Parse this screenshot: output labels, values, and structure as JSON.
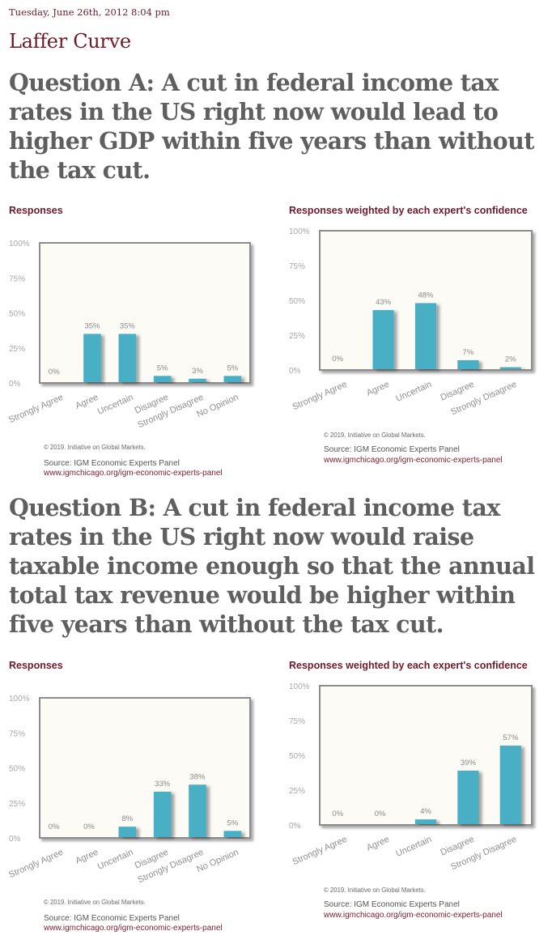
{
  "page": {
    "date": "Tuesday, June 26th, 2012 8:04 pm",
    "title": "Laffer Curve"
  },
  "questions": [
    {
      "heading": "Question A: A cut in federal income tax rates in the US right now would lead to higher GDP within five years than without the tax cut."
    },
    {
      "heading": "Question B: A cut in federal income tax rates in the US right now would raise taxable income enough so that the annual total tax revenue would be higher within five years than without the tax cut."
    }
  ],
  "colors": {
    "bar": "#4aafc4",
    "plot_bg": "#fdfbf5",
    "plot_border": "#8c8c8c",
    "accent": "#6e1a2c"
  },
  "chart_data": [
    {
      "id": "qa-responses",
      "type": "bar",
      "title": "Responses",
      "categories": [
        "Strongly Agree",
        "Agree",
        "Uncertain",
        "Disagree",
        "Strongly Disagree",
        "No Opinion"
      ],
      "values": [
        0,
        35,
        35,
        5,
        3,
        5
      ],
      "value_labels": [
        "0%",
        "35%",
        "35%",
        "5%",
        "3%",
        "5%"
      ],
      "yticks": [
        "0%",
        "25%",
        "50%",
        "75%",
        "100%"
      ],
      "ylim": [
        0,
        100
      ],
      "xlabel": "",
      "ylabel": "",
      "grid": false,
      "copyright": "© 2019. Initiative on Global Markets.",
      "source": "Source: IGM Economic Experts Panel",
      "url": "www.igmchicago.org/igm-economic-experts-panel"
    },
    {
      "id": "qa-weighted",
      "type": "bar",
      "title": "Responses weighted by each expert's confidence",
      "categories": [
        "Strongly Agree",
        "Agree",
        "Uncertain",
        "Disagree",
        "Strongly Disagree"
      ],
      "values": [
        0,
        43,
        48,
        7,
        2
      ],
      "value_labels": [
        "0%",
        "43%",
        "48%",
        "7%",
        "2%"
      ],
      "yticks": [
        "0%",
        "25%",
        "50%",
        "75%",
        "100%"
      ],
      "ylim": [
        0,
        100
      ],
      "xlabel": "",
      "ylabel": "",
      "grid": false,
      "copyright": "© 2019. Initiative on Global Markets.",
      "source": "Source: IGM Economic Experts Panel",
      "url": "www.igmchicago.org/igm-economic-experts-panel"
    },
    {
      "id": "qb-responses",
      "type": "bar",
      "title": "Responses",
      "categories": [
        "Strongly Agree",
        "Agree",
        "Uncertain",
        "Disagree",
        "Strongly Disagree",
        "No Opinion"
      ],
      "values": [
        0,
        0,
        8,
        33,
        38,
        5
      ],
      "value_labels": [
        "0%",
        "0%",
        "8%",
        "33%",
        "38%",
        "5%"
      ],
      "yticks": [
        "0%",
        "25%",
        "50%",
        "75%",
        "100%"
      ],
      "ylim": [
        0,
        100
      ],
      "xlabel": "",
      "ylabel": "",
      "grid": false,
      "copyright": "© 2019. Initiative on Global Markets.",
      "source": "Source: IGM Economic Experts Panel",
      "url": "www.igmchicago.org/igm-economic-experts-panel"
    },
    {
      "id": "qb-weighted",
      "type": "bar",
      "title": "Responses weighted by each expert's confidence",
      "categories": [
        "Strongly Agree",
        "Agree",
        "Uncertain",
        "Disagree",
        "Strongly Disagree"
      ],
      "values": [
        0,
        0,
        4,
        39,
        57
      ],
      "value_labels": [
        "0%",
        "0%",
        "4%",
        "39%",
        "57%"
      ],
      "yticks": [
        "0%",
        "25%",
        "50%",
        "75%",
        "100%"
      ],
      "ylim": [
        0,
        100
      ],
      "xlabel": "",
      "ylabel": "",
      "grid": false,
      "copyright": "© 2019. Initiative on Global Markets.",
      "source": "Source: IGM Economic Experts Panel",
      "url": "www.igmchicago.org/igm-economic-experts-panel"
    }
  ]
}
